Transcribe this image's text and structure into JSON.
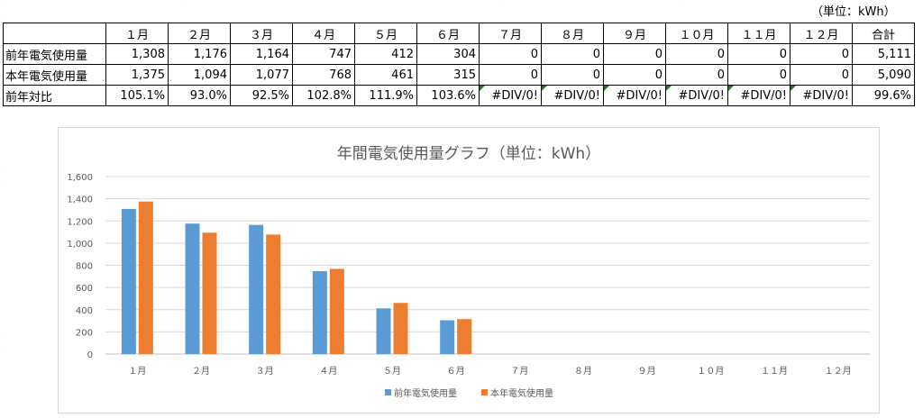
{
  "unit_note": "（単位：kWh）",
  "table": {
    "headers": [
      "",
      "１月",
      "２月",
      "３月",
      "４月",
      "５月",
      "６月",
      "７月",
      "８月",
      "９月",
      "１０月",
      "１１月",
      "１２月",
      "合計"
    ],
    "rows": [
      {
        "label": "前年電気使用量",
        "cells": [
          "1,308",
          "1,176",
          "1,164",
          "747",
          "412",
          "304",
          "0",
          "0",
          "0",
          "0",
          "0",
          "0",
          "5,111"
        ]
      },
      {
        "label": "本年電気使用量",
        "cells": [
          "1,375",
          "1,094",
          "1,077",
          "768",
          "461",
          "315",
          "0",
          "0",
          "0",
          "0",
          "0",
          "0",
          "5,090"
        ]
      },
      {
        "label": "前年対比",
        "cells": [
          "105.1%",
          "93.0%",
          "92.5%",
          "102.8%",
          "111.9%",
          "103.6%",
          "#DIV/0!",
          "#DIV/0!",
          "#DIV/0!",
          "#DIV/0!",
          "#DIV/0!",
          "#DIV/0!",
          "99.6%"
        ]
      }
    ]
  },
  "chart_data": {
    "type": "bar",
    "title": "年間電気使用量グラフ（単位：kWh）",
    "categories": [
      "１月",
      "２月",
      "３月",
      "４月",
      "５月",
      "６月",
      "７月",
      "８月",
      "９月",
      "１０月",
      "１１月",
      "１２月"
    ],
    "series": [
      {
        "name": "前年電気使用量",
        "color": "#5b9bd5",
        "values": [
          1308,
          1176,
          1164,
          747,
          412,
          304,
          0,
          0,
          0,
          0,
          0,
          0
        ]
      },
      {
        "name": "本年電気使用量",
        "color": "#ed7d31",
        "values": [
          1375,
          1094,
          1077,
          768,
          461,
          315,
          0,
          0,
          0,
          0,
          0,
          0
        ]
      }
    ],
    "ylim": [
      0,
      1600
    ],
    "yticks": [
      "0",
      "200",
      "400",
      "600",
      "800",
      "1,000",
      "1,200",
      "1,400",
      "1,600"
    ],
    "ytick_values": [
      0,
      200,
      400,
      600,
      800,
      1000,
      1200,
      1400,
      1600
    ],
    "grid": true,
    "legend_position": "bottom"
  }
}
